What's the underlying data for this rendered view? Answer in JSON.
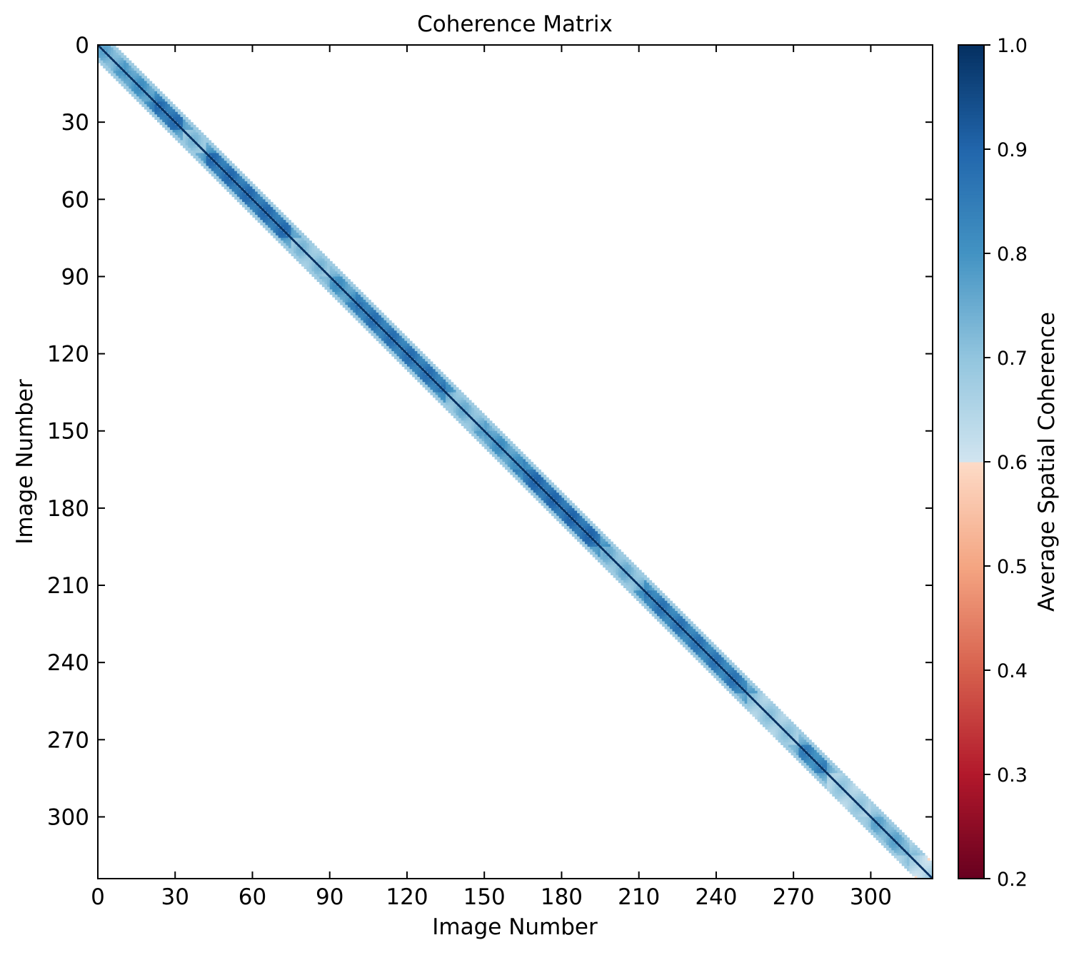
{
  "chart_data": {
    "type": "heatmap",
    "title": "Coherence Matrix",
    "xlabel": "Image Number",
    "ylabel": "Image Number",
    "colorbar_label": "Average Spatial Coherence",
    "n_images": 324,
    "xlim": [
      0,
      324
    ],
    "ylim": [
      324,
      0
    ],
    "x_ticks": [
      0,
      30,
      60,
      90,
      120,
      150,
      180,
      210,
      240,
      270,
      300
    ],
    "y_ticks": [
      0,
      30,
      60,
      90,
      120,
      150,
      180,
      210,
      240,
      270,
      300
    ],
    "color_range": [
      0.2,
      1.0
    ],
    "colorbar_ticks": [
      "0.2",
      "0.3",
      "0.4",
      "0.5",
      "0.6",
      "0.7",
      "0.8",
      "0.9",
      "1.0"
    ],
    "colormap": "RdBu",
    "diagonal_value": 1.0,
    "band_half_width": 6,
    "segments": [
      {
        "start": 0,
        "end": 10,
        "coherence": 0.76
      },
      {
        "start": 10,
        "end": 22,
        "coherence": 0.8
      },
      {
        "start": 22,
        "end": 33,
        "coherence": 0.88
      },
      {
        "start": 33,
        "end": 42,
        "coherence": 0.72
      },
      {
        "start": 42,
        "end": 75,
        "coherence": 0.88
      },
      {
        "start": 75,
        "end": 90,
        "coherence": 0.72
      },
      {
        "start": 90,
        "end": 100,
        "coherence": 0.8
      },
      {
        "start": 100,
        "end": 135,
        "coherence": 0.87
      },
      {
        "start": 135,
        "end": 150,
        "coherence": 0.74
      },
      {
        "start": 150,
        "end": 165,
        "coherence": 0.8
      },
      {
        "start": 165,
        "end": 195,
        "coherence": 0.89
      },
      {
        "start": 195,
        "end": 212,
        "coherence": 0.74
      },
      {
        "start": 212,
        "end": 252,
        "coherence": 0.86
      },
      {
        "start": 252,
        "end": 272,
        "coherence": 0.7
      },
      {
        "start": 272,
        "end": 283,
        "coherence": 0.84
      },
      {
        "start": 283,
        "end": 300,
        "coherence": 0.69
      },
      {
        "start": 300,
        "end": 315,
        "coherence": 0.76
      },
      {
        "start": 315,
        "end": 324,
        "coherence": 0.66
      }
    ],
    "grid": false,
    "legend": "none"
  }
}
